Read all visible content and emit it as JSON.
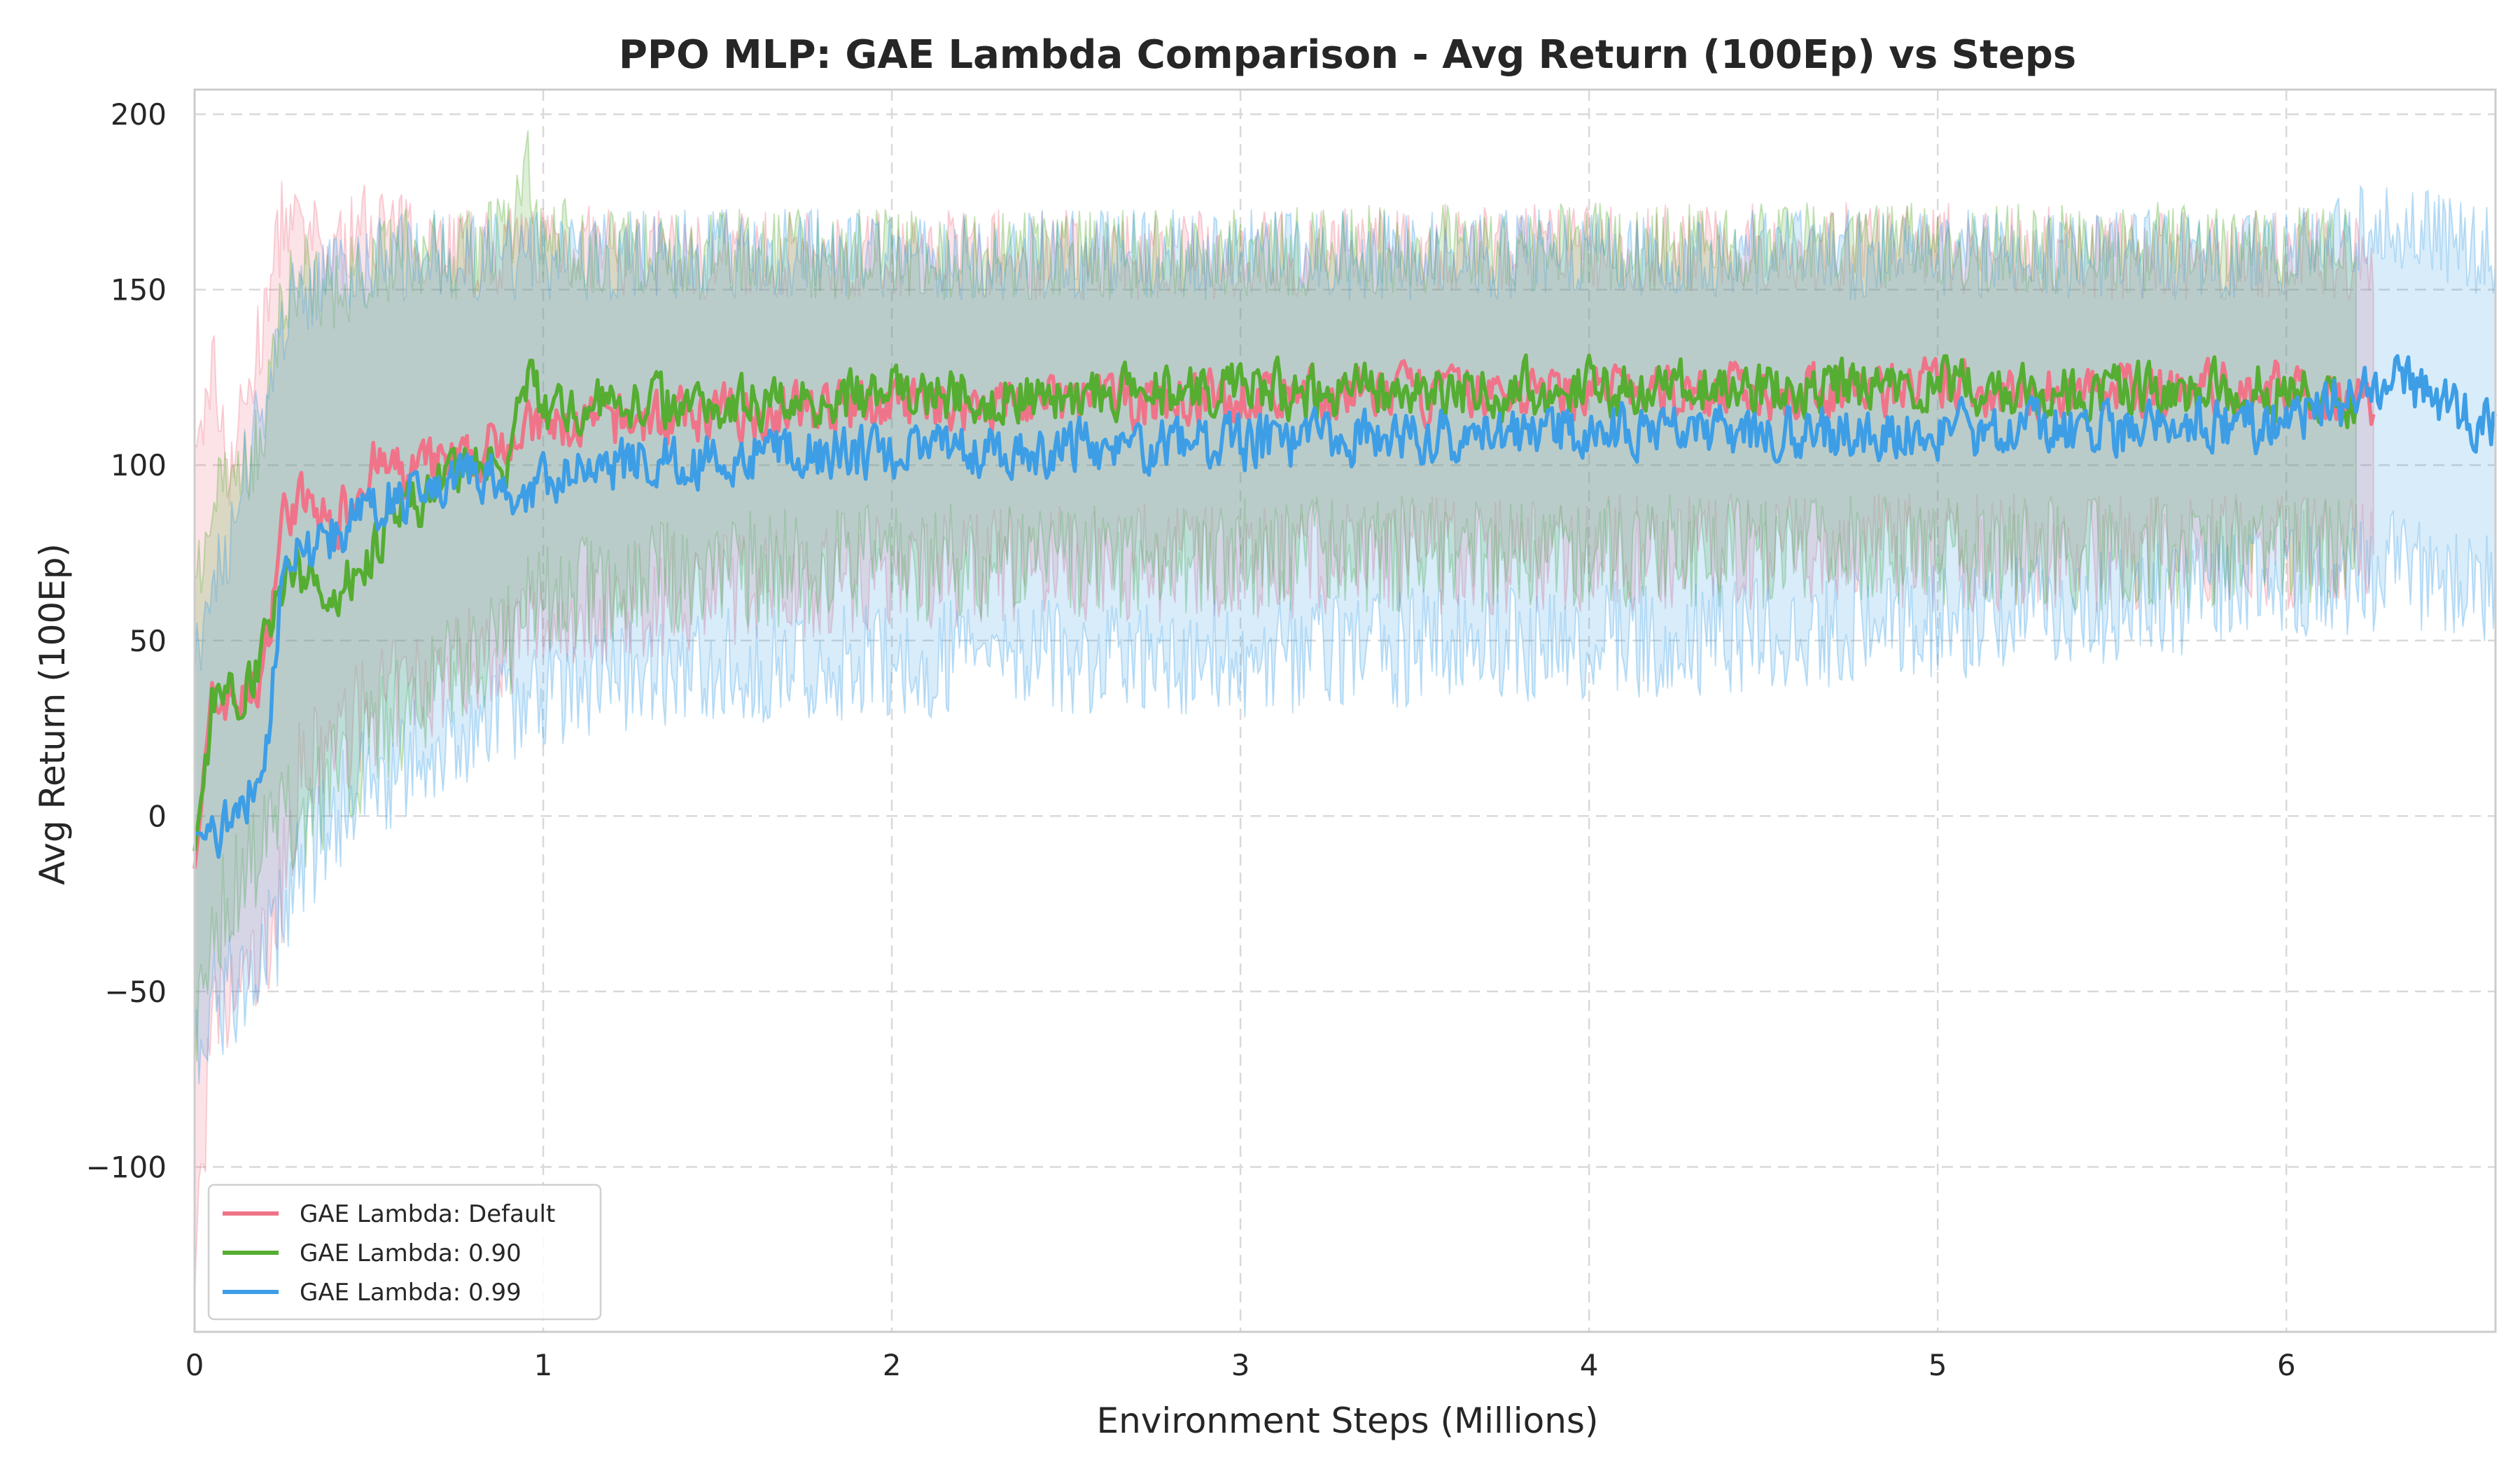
{
  "chart_data": {
    "type": "line",
    "title": "PPO MLP: GAE Lambda Comparison - Avg Return (100Ep) vs Steps",
    "xlabel": "Environment Steps (Millions)",
    "ylabel": "Avg Return (100Ep)",
    "xlim": [
      0,
      6.6
    ],
    "ylim": [
      -147,
      207
    ],
    "xticks": [
      0,
      1,
      2,
      3,
      4,
      5,
      6
    ],
    "xtick_labels": [
      "0",
      "1",
      "2",
      "3",
      "4",
      "5",
      "6"
    ],
    "yticks": [
      -100,
      -50,
      0,
      50,
      100,
      150,
      200
    ],
    "ytick_labels": [
      "−100",
      "−50",
      "0",
      "50",
      "100",
      "150",
      "200"
    ],
    "grid": true,
    "legend_position": "lower-left",
    "series": [
      {
        "name": "GAE Lambda: Default",
        "color": "#f07489",
        "x": [
          0,
          0.05,
          0.1,
          0.15,
          0.2,
          0.25,
          0.3,
          0.4,
          0.5,
          0.6,
          0.7,
          0.8,
          0.9,
          1.0,
          1.2,
          1.5,
          2.0,
          2.5,
          3.0,
          3.5,
          4.0,
          4.5,
          5.0,
          5.5,
          6.0,
          6.25
        ],
        "mean": [
          -15,
          30,
          35,
          33,
          42,
          85,
          90,
          82,
          100,
          97,
          100,
          100,
          110,
          110,
          112,
          115,
          117,
          118,
          119,
          120,
          121,
          121,
          122,
          121,
          122,
          118
        ],
        "upper": [
          95,
          130,
          100,
          120,
          140,
          170,
          165,
          160,
          170,
          165,
          165,
          160,
          160,
          165,
          160,
          160,
          160,
          160,
          160,
          162,
          162,
          162,
          162,
          160,
          160,
          160
        ],
        "lower": [
          -130,
          -60,
          -55,
          -45,
          -40,
          -20,
          10,
          20,
          30,
          35,
          40,
          45,
          50,
          55,
          60,
          65,
          70,
          72,
          72,
          74,
          75,
          75,
          75,
          75,
          75,
          75
        ]
      },
      {
        "name": "GAE Lambda: 0.90",
        "color": "#55ad32",
        "x": [
          0,
          0.05,
          0.1,
          0.15,
          0.2,
          0.25,
          0.3,
          0.4,
          0.5,
          0.6,
          0.7,
          0.8,
          0.9,
          0.95,
          1.0,
          1.2,
          1.5,
          2.0,
          2.5,
          3.0,
          3.5,
          4.0,
          4.5,
          5.0,
          5.5,
          6.0,
          6.2
        ],
        "mean": [
          -10,
          30,
          35,
          38,
          48,
          65,
          70,
          62,
          75,
          85,
          95,
          100,
          100,
          125,
          115,
          118,
          118,
          120,
          120,
          121,
          121,
          122,
          122,
          122,
          121,
          122,
          115
        ],
        "upper": [
          60,
          90,
          100,
          100,
          110,
          150,
          155,
          150,
          158,
          160,
          160,
          160,
          165,
          185,
          165,
          160,
          160,
          160,
          160,
          160,
          162,
          162,
          162,
          162,
          162,
          162,
          160
        ],
        "lower": [
          -60,
          -40,
          -20,
          -15,
          -10,
          0,
          0,
          10,
          20,
          30,
          40,
          45,
          50,
          60,
          60,
          65,
          70,
          72,
          72,
          74,
          75,
          75,
          75,
          75,
          75,
          75,
          75
        ]
      },
      {
        "name": "GAE Lambda: 0.99",
        "color": "#3d9ee6",
        "x": [
          0,
          0.05,
          0.1,
          0.15,
          0.2,
          0.25,
          0.3,
          0.4,
          0.5,
          0.6,
          0.7,
          0.8,
          0.9,
          1.0,
          1.2,
          1.5,
          2.0,
          2.5,
          3.0,
          3.5,
          4.0,
          4.5,
          5.0,
          5.5,
          6.0,
          6.3,
          6.6
        ],
        "mean": [
          -5,
          -5,
          0,
          5,
          10,
          70,
          75,
          80,
          90,
          90,
          95,
          100,
          92,
          95,
          100,
          102,
          104,
          105,
          106,
          108,
          110,
          110,
          110,
          110,
          112,
          125,
          110
        ],
        "upper": [
          40,
          60,
          80,
          100,
          120,
          140,
          150,
          155,
          158,
          160,
          160,
          160,
          160,
          160,
          160,
          160,
          160,
          160,
          160,
          160,
          160,
          160,
          160,
          160,
          160,
          170,
          160
        ],
        "lower": [
          -65,
          -55,
          -50,
          -45,
          -40,
          -30,
          -15,
          0,
          10,
          15,
          20,
          25,
          30,
          35,
          40,
          42,
          45,
          45,
          45,
          48,
          50,
          52,
          55,
          60,
          65,
          70,
          65
        ]
      }
    ]
  }
}
